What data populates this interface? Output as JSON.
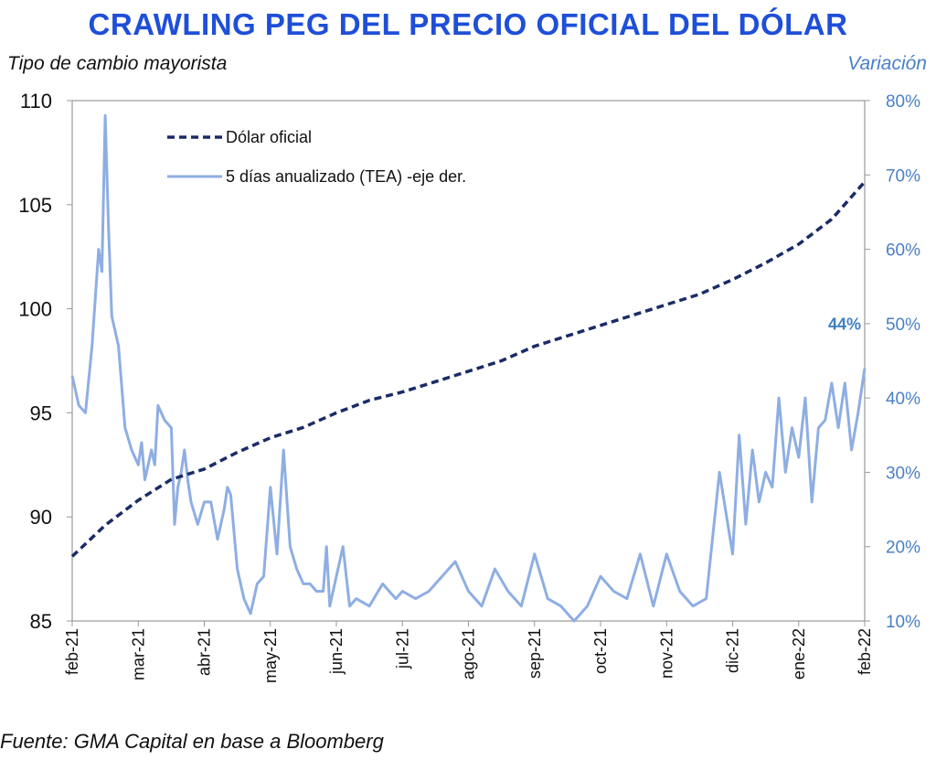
{
  "title": "CRAWLING PEG DEL PRECIO OFICIAL DEL DÓLAR",
  "left_axis_title": "Tipo de cambio mayorista",
  "right_axis_title": "Variación",
  "source": "Fuente: GMA Capital en base a Bloomberg",
  "colors": {
    "title": "#1f4fd8",
    "official": "#1a2c66",
    "tea": "#8eaee3",
    "right_axis": "#4a7fc7",
    "annotation": "#3f7fc0"
  },
  "chart_data": {
    "type": "line",
    "x_ticks": [
      "feb-21",
      "mar-21",
      "abr-21",
      "may-21",
      "jun-21",
      "jul-21",
      "ago-21",
      "sep-21",
      "oct-21",
      "nov-21",
      "dic-21",
      "ene-22",
      "feb-22"
    ],
    "y_left": {
      "ticks": [
        "110",
        "105",
        "100",
        "95",
        "90",
        "85"
      ],
      "lim": [
        85,
        110
      ]
    },
    "y_right": {
      "ticks": [
        "80%",
        "70%",
        "60%",
        "50%",
        "40%",
        "30%",
        "20%",
        "10%"
      ],
      "lim": [
        10,
        80
      ]
    },
    "grid": false,
    "legend_position": "top-left",
    "annotation": {
      "label": "44%",
      "series": "5 días anualizado (TEA) -eje der.",
      "x": 12,
      "y": 44
    },
    "series": [
      {
        "name": "Dólar oficial",
        "axis": "left",
        "style": "dashed",
        "x": [
          0,
          0.5,
          1,
          1.5,
          2,
          2.5,
          3,
          3.5,
          4,
          4.5,
          5,
          5.5,
          6,
          6.5,
          7,
          7.5,
          8,
          8.5,
          9,
          9.5,
          10,
          10.5,
          11,
          11.5,
          12
        ],
        "y": [
          88.1,
          89.6,
          90.8,
          91.8,
          92.3,
          93.1,
          93.8,
          94.3,
          95.0,
          95.6,
          96.0,
          96.5,
          97.0,
          97.5,
          98.2,
          98.7,
          99.2,
          99.7,
          100.2,
          100.7,
          101.4,
          102.2,
          103.1,
          104.3,
          106.1
        ]
      },
      {
        "name": "5 días anualizado (TEA) -eje der.",
        "axis": "right",
        "style": "solid",
        "x": [
          0,
          0.1,
          0.2,
          0.3,
          0.4,
          0.45,
          0.5,
          0.55,
          0.6,
          0.7,
          0.8,
          0.9,
          1.0,
          1.05,
          1.1,
          1.2,
          1.25,
          1.3,
          1.4,
          1.5,
          1.55,
          1.6,
          1.65,
          1.7,
          1.75,
          1.8,
          1.9,
          2.0,
          2.1,
          2.2,
          2.3,
          2.35,
          2.4,
          2.5,
          2.6,
          2.7,
          2.8,
          2.9,
          3.0,
          3.1,
          3.2,
          3.3,
          3.4,
          3.5,
          3.6,
          3.7,
          3.8,
          3.85,
          3.9,
          4.0,
          4.1,
          4.2,
          4.3,
          4.5,
          4.7,
          4.9,
          5.0,
          5.2,
          5.4,
          5.6,
          5.8,
          6.0,
          6.2,
          6.4,
          6.6,
          6.8,
          7.0,
          7.2,
          7.4,
          7.6,
          7.8,
          8.0,
          8.2,
          8.4,
          8.6,
          8.8,
          9.0,
          9.2,
          9.4,
          9.6,
          9.8,
          10.0,
          10.1,
          10.2,
          10.3,
          10.4,
          10.5,
          10.6,
          10.7,
          10.8,
          10.9,
          11.0,
          11.1,
          11.2,
          11.3,
          11.4,
          11.5,
          11.6,
          11.7,
          11.8,
          11.9,
          12.0
        ],
        "y": [
          43,
          39,
          38,
          47,
          60,
          57,
          78,
          63,
          51,
          47,
          36,
          33,
          31,
          34,
          29,
          33,
          31,
          39,
          37,
          36,
          23,
          28,
          30,
          33,
          29,
          26,
          23,
          26,
          26,
          21,
          25,
          28,
          27,
          17,
          13,
          11,
          15,
          16,
          28,
          19,
          33,
          20,
          17,
          15,
          15,
          14,
          14,
          20,
          12,
          16,
          20,
          12,
          13,
          12,
          15,
          13,
          14,
          13,
          14,
          16,
          18,
          14,
          12,
          17,
          14,
          12,
          19,
          13,
          12,
          10,
          12,
          16,
          14,
          13,
          19,
          12,
          19,
          14,
          12,
          13,
          30,
          19,
          35,
          23,
          33,
          26,
          30,
          28,
          40,
          30,
          36,
          32,
          40,
          26,
          36,
          37,
          42,
          36,
          42,
          33,
          38,
          44
        ]
      }
    ]
  }
}
